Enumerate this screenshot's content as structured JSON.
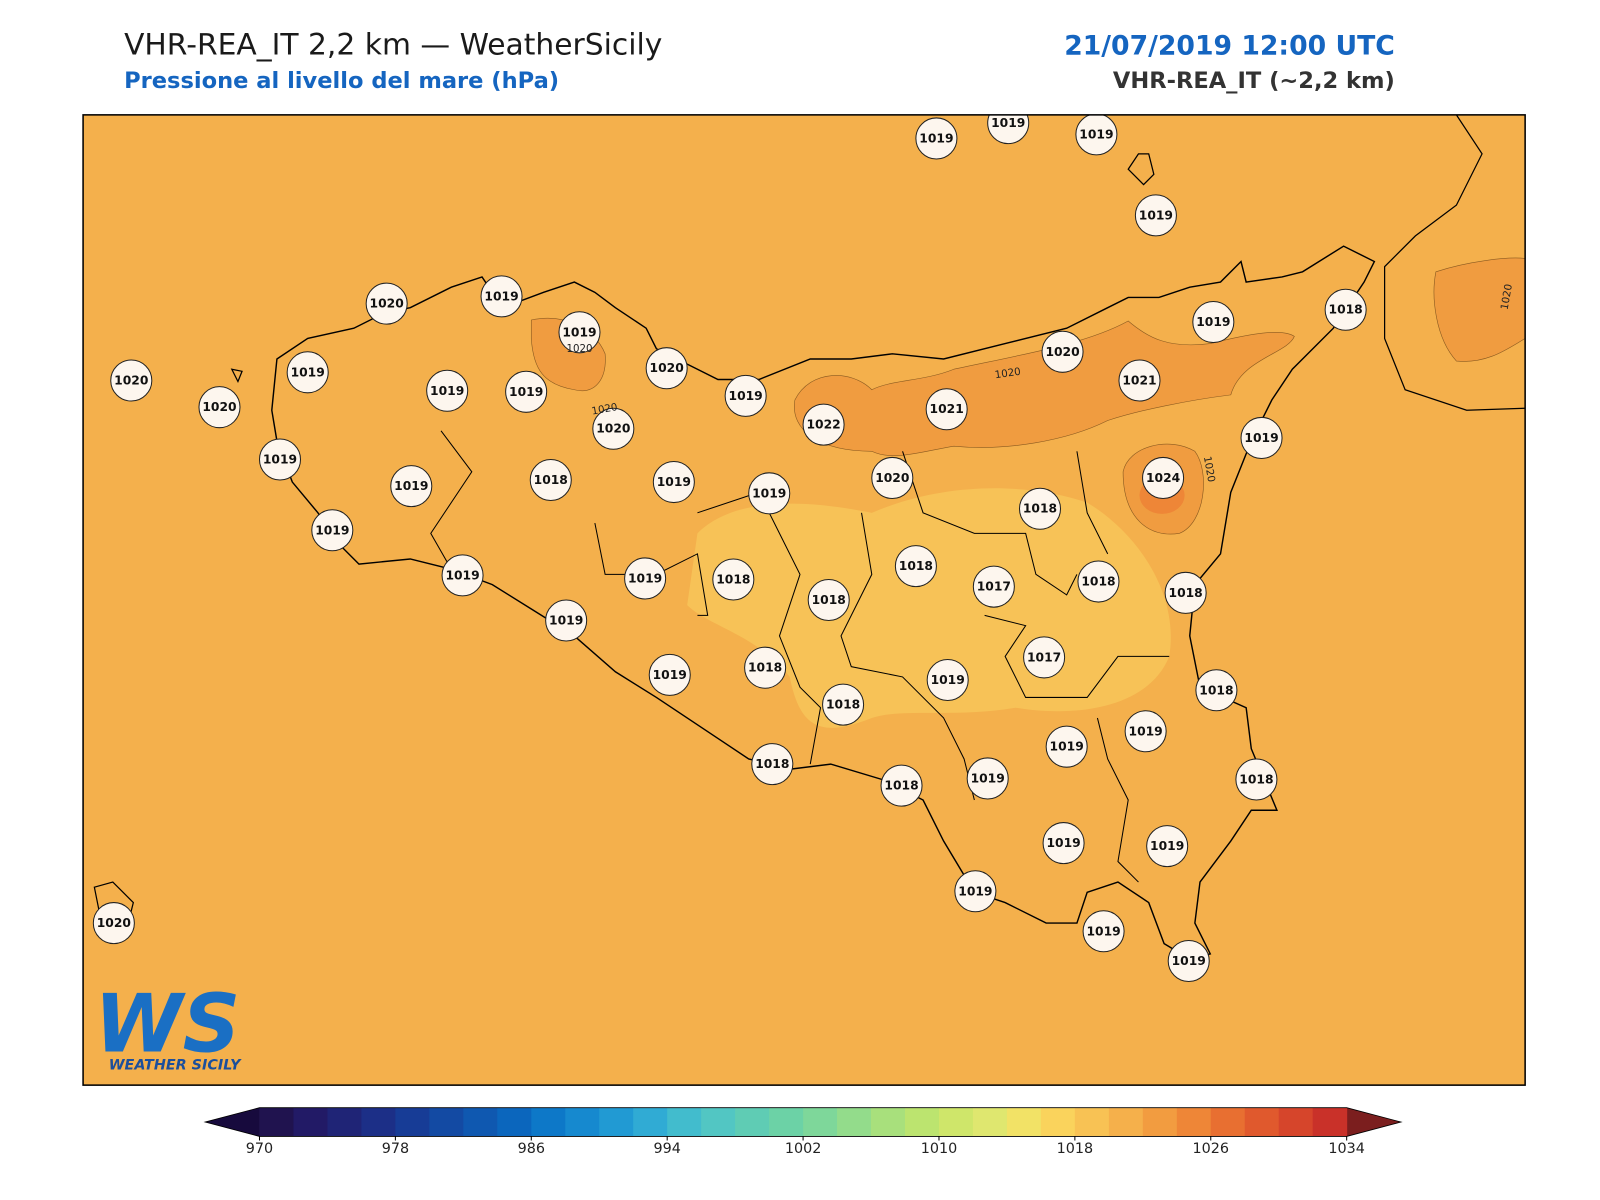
{
  "header": {
    "title": "VHR-REA_IT 2,2 km — WeatherSicily",
    "subtitle": "Pressione al livello del mare (hPa)",
    "date": "21/07/2019 12:00 UTC",
    "model": "VHR-REA_IT (~2,2 km)"
  },
  "stations": [
    1019,
    1019,
    1019,
    1019,
    1020,
    1019,
    1019,
    1020,
    1020,
    1019,
    1019,
    1019,
    1020,
    1019,
    1020,
    1022,
    1021,
    1020,
    1021,
    1019,
    1018,
    1019,
    1024,
    1019,
    1019,
    1018,
    1019,
    1019,
    1020,
    1018,
    1019,
    1019,
    1019,
    1018,
    1018,
    1018,
    1017,
    1018,
    1018,
    1019,
    1019,
    1018,
    1018,
    1019,
    1017,
    1018,
    1019,
    1019,
    1018,
    1018,
    1019,
    1018,
    1019,
    1019,
    1019,
    1019,
    1019,
    1020
  ],
  "contour_labels": [
    1020,
    1020,
    1020,
    1020,
    1020
  ],
  "colorbar": {
    "lim": [
      970,
      1034
    ],
    "ticks": [
      970,
      978,
      986,
      994,
      1002,
      1010,
      1018,
      1026,
      1034
    ],
    "colors": [
      "#20134f",
      "#221a66",
      "#1f2476",
      "#1c2f87",
      "#173c96",
      "#134aa3",
      "#0f58b0",
      "#0b66bd",
      "#0d78c8",
      "#1689cf",
      "#219ad3",
      "#30abd4",
      "#42bccd",
      "#52c6c3",
      "#5fccb4",
      "#6cd2a6",
      "#7ed79a",
      "#93dc8b",
      "#a8e07c",
      "#bce46f",
      "#cfe66a",
      "#dfe76f",
      "#f2e266",
      "#fad35c",
      "#f8c254",
      "#f5b04b",
      "#f29c40",
      "#ee8637",
      "#e86f31",
      "#e0592d",
      "#d6452b",
      "#c93129"
    ],
    "under_color": "#170a3d",
    "over_color": "#7b1e1e"
  },
  "logo": {
    "mark": "WS",
    "name": "WEATHER SICILY"
  }
}
